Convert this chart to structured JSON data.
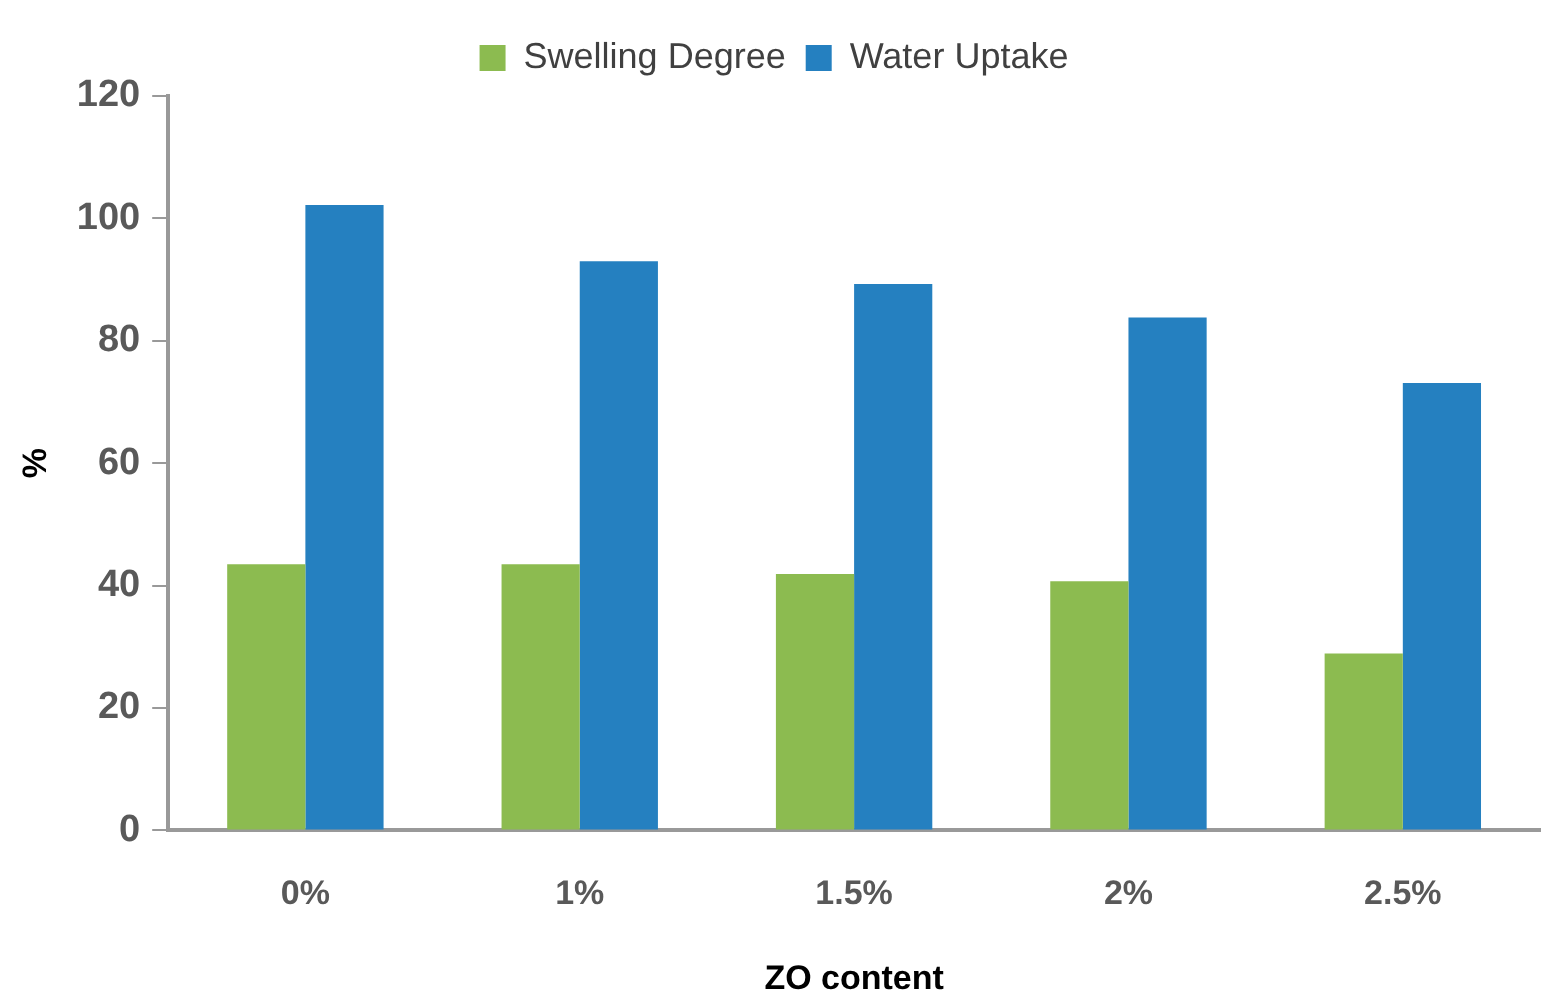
{
  "chart_data": {
    "type": "bar",
    "xlabel": "ZO content",
    "ylabel": "%",
    "categories": [
      "0%",
      "1%",
      "1.5%",
      "2%",
      "2.5%"
    ],
    "series": [
      {
        "name": "Swelling Degree",
        "color": "#8cbb50",
        "values": [
          43.5,
          43.5,
          41.9,
          40.7,
          28.9
        ]
      },
      {
        "name": "Water Uptake",
        "color": "#2580c0",
        "values": [
          102.2,
          93,
          89.3,
          83.8,
          73.1
        ]
      }
    ],
    "ylim": [
      0,
      120
    ],
    "yticks": [
      0,
      20,
      40,
      60,
      80,
      100,
      120
    ],
    "grid": false,
    "legend": "top"
  }
}
